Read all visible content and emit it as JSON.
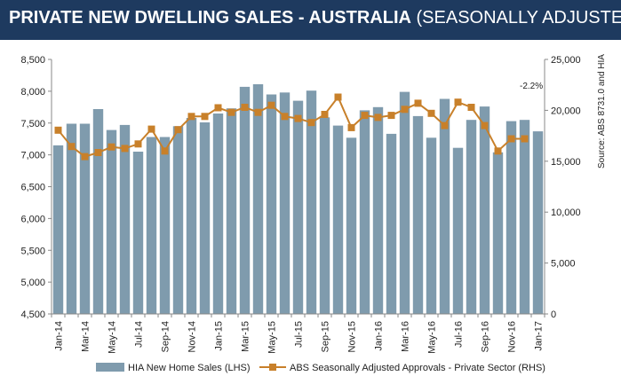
{
  "header": {
    "title_main": "PRIVATE NEW DWELLING SALES -  AUSTRALIA",
    "title_sub": "(SEASONALLY ADJUSTED)",
    "background_color": "#1e3a5f"
  },
  "chart_data": {
    "type": "bar",
    "title": "PRIVATE NEW DWELLING SALES -  AUSTRALIA (SEASONALLY ADJUSTED)",
    "source_note": "Source: ABS 8731.0 and HIA",
    "annotation": "-2.2%",
    "categories": [
      "Jan-14",
      "Feb-14",
      "Mar-14",
      "Apr-14",
      "May-14",
      "Jun-14",
      "Jul-14",
      "Aug-14",
      "Sep-14",
      "Oct-14",
      "Nov-14",
      "Dec-14",
      "Jan-15",
      "Feb-15",
      "Mar-15",
      "Apr-15",
      "May-15",
      "Jun-15",
      "Jul-15",
      "Aug-15",
      "Sep-15",
      "Oct-15",
      "Nov-15",
      "Dec-15",
      "Jan-16",
      "Feb-16",
      "Mar-16",
      "Apr-16",
      "May-16",
      "Jun-16",
      "Jul-16",
      "Aug-16",
      "Sep-16",
      "Oct-16",
      "Nov-16",
      "Dec-16",
      "Jan-17"
    ],
    "tick_labels": [
      "Jan-14",
      "Mar-14",
      "May-14",
      "Jul-14",
      "Sep-14",
      "Nov-14",
      "Jan-15",
      "Mar-15",
      "May-15",
      "Jul-15",
      "Sep-15",
      "Nov-15",
      "Jan-16",
      "Mar-16",
      "May-16",
      "Jul-16",
      "Sep-16",
      "Nov-16",
      "Jan-17"
    ],
    "series": [
      {
        "name": "HIA New Home Sales (LHS)",
        "kind": "bar",
        "axis": "left",
        "color": "#7f9bad",
        "values": [
          7150,
          7490,
          7490,
          7720,
          7390,
          7470,
          7050,
          7280,
          7280,
          7450,
          7580,
          7510,
          7650,
          7730,
          8070,
          8110,
          7950,
          7980,
          7850,
          8010,
          7590,
          7460,
          7270,
          7700,
          7750,
          7330,
          7990,
          7610,
          7270,
          7880,
          7110,
          7550,
          7760,
          7040,
          7530,
          7550,
          7370
        ]
      },
      {
        "name": "ABS Seasonally Adjusted Approvals - Private Sector (RHS)",
        "kind": "line",
        "axis": "right",
        "color": "#c8802a",
        "values": [
          18050,
          16450,
          15450,
          15850,
          16400,
          16250,
          16700,
          18150,
          16000,
          18100,
          19400,
          19400,
          20250,
          19800,
          20300,
          19800,
          20500,
          19400,
          19200,
          18800,
          19600,
          21300,
          18300,
          19500,
          19300,
          19500,
          20100,
          20700,
          19700,
          18500,
          20800,
          20300,
          18500,
          16000,
          17200,
          17200,
          null
        ]
      }
    ],
    "y_left": {
      "min": 4500,
      "max": 8500,
      "ticks": [
        "4,500",
        "5,000",
        "5,500",
        "6,000",
        "6,500",
        "7,000",
        "7,500",
        "8,000",
        "8,500"
      ]
    },
    "y_right": {
      "min": 0,
      "max": 25000,
      "ticks": [
        "0",
        "5,000",
        "10,000",
        "15,000",
        "20,000",
        "25,000"
      ]
    },
    "legend": {
      "position": "bottom"
    },
    "grid": false
  }
}
